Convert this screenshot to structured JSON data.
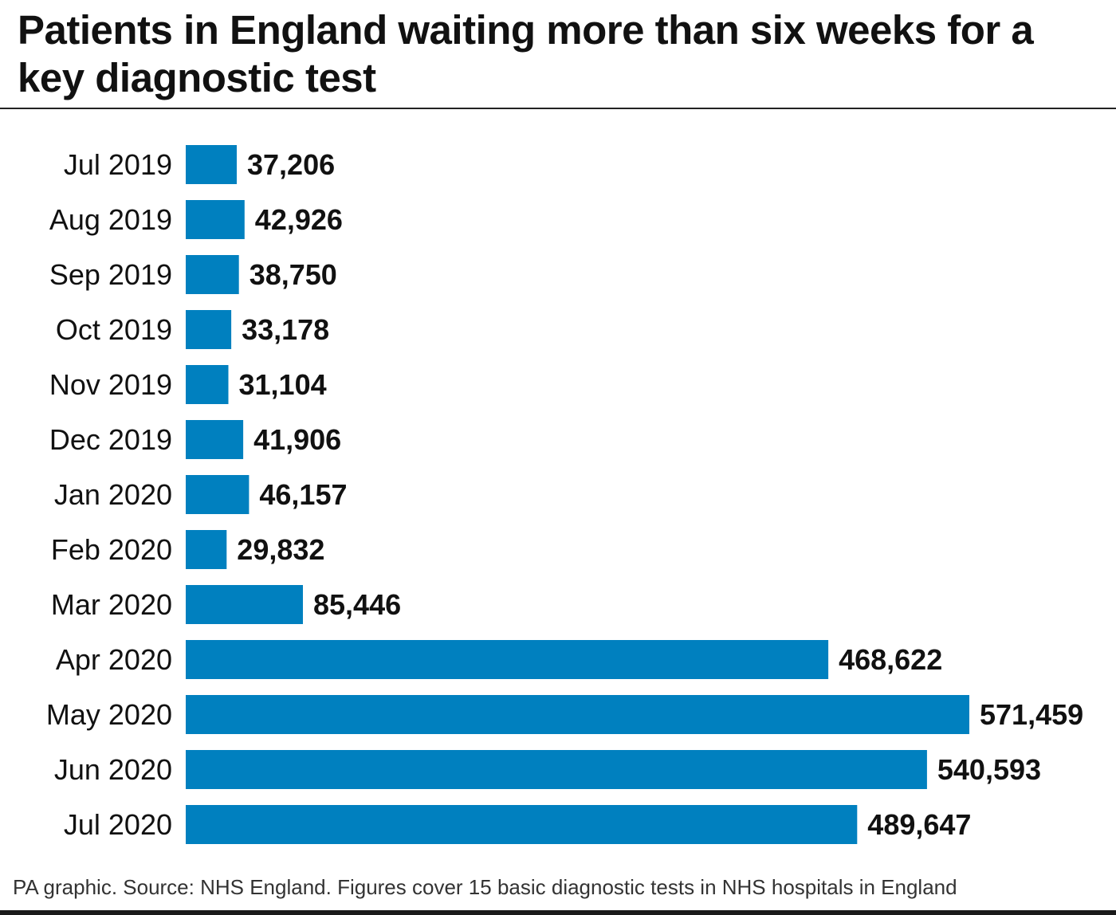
{
  "chart_data": {
    "type": "bar",
    "orientation": "horizontal",
    "title": "Patients in England waiting more than six weeks for a key diagnostic test",
    "categories": [
      "Jul 2019",
      "Aug 2019",
      "Sep 2019",
      "Oct 2019",
      "Nov 2019",
      "Dec 2019",
      "Jan 2020",
      "Feb 2020",
      "Mar 2020",
      "Apr 2020",
      "May 2020",
      "Jun 2020",
      "Jul 2020"
    ],
    "values": [
      37206,
      42926,
      38750,
      33178,
      31104,
      41906,
      46157,
      29832,
      85446,
      468622,
      571459,
      540593,
      489647
    ],
    "value_labels": [
      "37,206",
      "42,926",
      "38,750",
      "33,178",
      "31,104",
      "41,906",
      "46,157",
      "29,832",
      "85,446",
      "468,622",
      "571,459",
      "540,593",
      "489,647"
    ],
    "xlim": [
      0,
      571459
    ],
    "xlabel": "",
    "ylabel": "",
    "grid": false,
    "bar_color": "#0080bf"
  },
  "footer": "PA graphic. Source: NHS England. Figures cover 15 basic diagnostic tests in NHS hospitals in England"
}
